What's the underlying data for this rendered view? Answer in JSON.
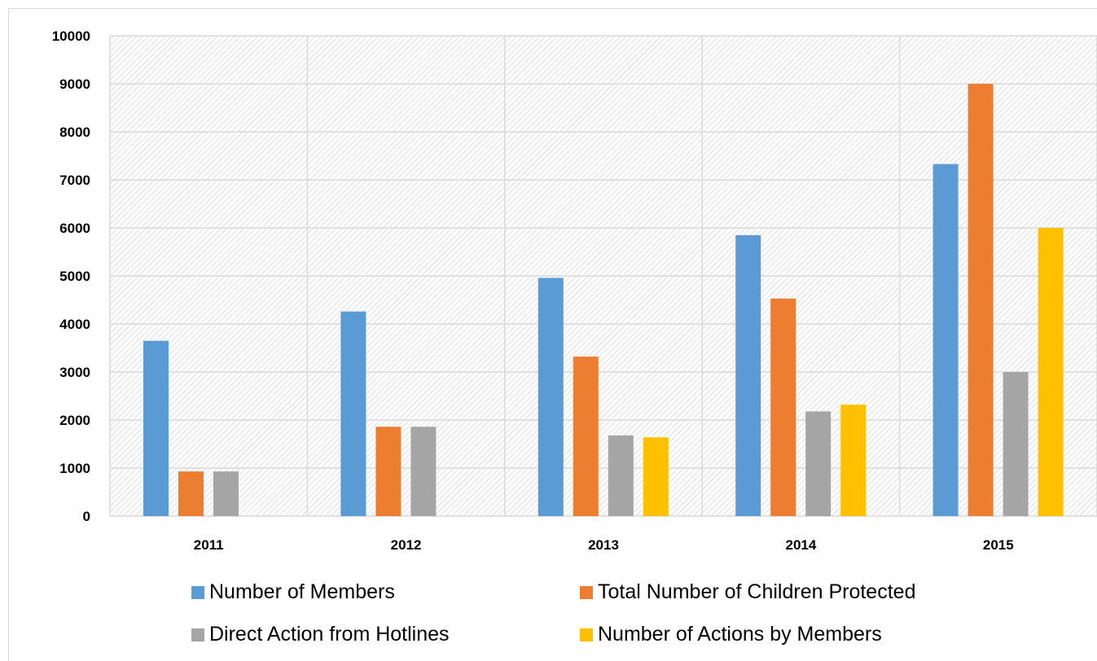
{
  "chart_data": {
    "type": "bar",
    "categories": [
      "2011",
      "2012",
      "2013",
      "2014",
      "2015"
    ],
    "ylim": [
      0,
      10000
    ],
    "yticks": [
      0,
      1000,
      2000,
      3000,
      4000,
      5000,
      6000,
      7000,
      8000,
      9000,
      10000
    ],
    "grid": true,
    "legend_position": "bottom",
    "series": [
      {
        "name": "Number of Members",
        "color": "#5b9bd5",
        "values": [
          3650,
          4260,
          4960,
          5850,
          7330
        ]
      },
      {
        "name": "Total Number of Children Protected",
        "color": "#ed7d31",
        "values": [
          930,
          1860,
          3320,
          4530,
          9000
        ]
      },
      {
        "name": "Direct Action from Hotlines",
        "color": "#a5a5a5",
        "values": [
          930,
          1860,
          1680,
          2180,
          3000
        ]
      },
      {
        "name": "Number of Actions by Members",
        "color": "#ffc000",
        "values": [
          0,
          0,
          1640,
          2320,
          6000
        ]
      }
    ]
  }
}
